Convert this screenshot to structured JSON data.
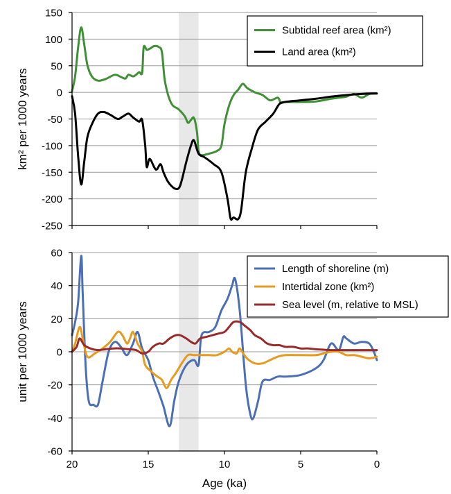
{
  "x_axis": {
    "label": "Age (ka)",
    "ticks": [
      20,
      15,
      10,
      5,
      0
    ],
    "range": [
      20,
      0
    ],
    "shaded_band": [
      13,
      11.7
    ]
  },
  "chart_data": [
    {
      "type": "line",
      "title": "",
      "xlabel": "",
      "ylabel": "km² per 1000 years",
      "ylim": [
        -250,
        150
      ],
      "yticks": [
        150,
        100,
        50,
        0,
        -50,
        -100,
        -150,
        -200,
        -250
      ],
      "grid": true,
      "legend_position": "top-right",
      "series": [
        {
          "name": "Subtidal reef area (km²)",
          "color": "#3f8f35",
          "points": [
            [
              20,
              2
            ],
            [
              19.8,
              30
            ],
            [
              19.6,
              85
            ],
            [
              19.4,
              122
            ],
            [
              19.2,
              90
            ],
            [
              19.0,
              52
            ],
            [
              18.7,
              30
            ],
            [
              18.3,
              22
            ],
            [
              17.8,
              25
            ],
            [
              17.2,
              33
            ],
            [
              16.8,
              29
            ],
            [
              16.5,
              26
            ],
            [
              16.3,
              33
            ],
            [
              16.0,
              30
            ],
            [
              15.8,
              33
            ],
            [
              15.6,
              38
            ],
            [
              15.4,
              37
            ],
            [
              15.3,
              85
            ],
            [
              15.1,
              80
            ],
            [
              14.9,
              82
            ],
            [
              14.6,
              87
            ],
            [
              14.3,
              85
            ],
            [
              14.1,
              75
            ],
            [
              13.9,
              20
            ],
            [
              13.5,
              -20
            ],
            [
              13.0,
              -32
            ],
            [
              12.6,
              -45
            ],
            [
              12.4,
              -57
            ],
            [
              12.2,
              -52
            ],
            [
              12.0,
              -48
            ],
            [
              11.8,
              -75
            ],
            [
              11.7,
              -110
            ],
            [
              11.5,
              -118
            ],
            [
              11.0,
              -115
            ],
            [
              10.5,
              -110
            ],
            [
              10.2,
              -100
            ],
            [
              10.0,
              -60
            ],
            [
              9.7,
              -25
            ],
            [
              9.4,
              -5
            ],
            [
              9.1,
              5
            ],
            [
              8.8,
              16
            ],
            [
              8.5,
              8
            ],
            [
              8.0,
              0
            ],
            [
              7.5,
              -5
            ],
            [
              7.0,
              -15
            ],
            [
              6.5,
              -10
            ],
            [
              6.3,
              -20
            ],
            [
              6.0,
              -18
            ],
            [
              5.0,
              -18
            ],
            [
              4.0,
              -17
            ],
            [
              3.0,
              -12
            ],
            [
              2.5,
              -10
            ],
            [
              2.0,
              -8
            ],
            [
              1.5,
              -3
            ],
            [
              1.0,
              -10
            ],
            [
              0.5,
              -3
            ],
            [
              0,
              -2
            ]
          ]
        },
        {
          "name": "Land area (km²)",
          "color": "#000000",
          "points": [
            [
              20,
              -7
            ],
            [
              19.8,
              -40
            ],
            [
              19.6,
              -120
            ],
            [
              19.4,
              -173
            ],
            [
              19.2,
              -130
            ],
            [
              19.0,
              -85
            ],
            [
              18.7,
              -60
            ],
            [
              18.3,
              -40
            ],
            [
              17.9,
              -37
            ],
            [
              17.5,
              -42
            ],
            [
              17.0,
              -50
            ],
            [
              16.7,
              -46
            ],
            [
              16.3,
              -40
            ],
            [
              16.0,
              -47
            ],
            [
              15.6,
              -55
            ],
            [
              15.4,
              -52
            ],
            [
              15.2,
              -100
            ],
            [
              15.1,
              -140
            ],
            [
              14.9,
              -125
            ],
            [
              14.5,
              -145
            ],
            [
              14.2,
              -135
            ],
            [
              14.0,
              -150
            ],
            [
              13.7,
              -168
            ],
            [
              13.3,
              -180
            ],
            [
              13.0,
              -180
            ],
            [
              12.8,
              -165
            ],
            [
              12.5,
              -130
            ],
            [
              12.2,
              -100
            ],
            [
              12.0,
              -90
            ],
            [
              11.7,
              -115
            ],
            [
              11.3,
              -122
            ],
            [
              10.7,
              -135
            ],
            [
              10.2,
              -150
            ],
            [
              9.8,
              -200
            ],
            [
              9.6,
              -237
            ],
            [
              9.4,
              -235
            ],
            [
              9.1,
              -238
            ],
            [
              8.9,
              -220
            ],
            [
              8.6,
              -150
            ],
            [
              8.2,
              -105
            ],
            [
              7.8,
              -70
            ],
            [
              7.3,
              -55
            ],
            [
              6.8,
              -40
            ],
            [
              6.4,
              -22
            ],
            [
              6.0,
              -18
            ],
            [
              5.0,
              -15
            ],
            [
              4.0,
              -12
            ],
            [
              3.0,
              -8
            ],
            [
              2.0,
              -5
            ],
            [
              1.0,
              -3
            ],
            [
              0,
              -2
            ]
          ]
        }
      ]
    },
    {
      "type": "line",
      "title": "",
      "xlabel": "Age (ka)",
      "ylabel": "unit per 1000 years",
      "ylim": [
        -60,
        60
      ],
      "yticks": [
        60,
        40,
        20,
        0,
        -20,
        -40,
        -60
      ],
      "grid": true,
      "legend_position": "top-right",
      "series": [
        {
          "name": "Length of shoreline (m)",
          "color": "#4a6fb5",
          "points": [
            [
              20,
              10
            ],
            [
              19.8,
              18
            ],
            [
              19.6,
              30
            ],
            [
              19.4,
              58
            ],
            [
              19.3,
              35
            ],
            [
              19.1,
              -10
            ],
            [
              18.9,
              -30
            ],
            [
              18.6,
              -32
            ],
            [
              18.3,
              -32
            ],
            [
              18.0,
              -18
            ],
            [
              17.6,
              0
            ],
            [
              17.2,
              6
            ],
            [
              16.8,
              3
            ],
            [
              16.4,
              -2
            ],
            [
              16.0,
              5
            ],
            [
              15.7,
              12
            ],
            [
              15.4,
              2
            ],
            [
              15.0,
              -5
            ],
            [
              14.7,
              -15
            ],
            [
              14.3,
              -25
            ],
            [
              14.0,
              -33
            ],
            [
              13.6,
              -45
            ],
            [
              13.3,
              -30
            ],
            [
              13.0,
              -18
            ],
            [
              12.5,
              -8
            ],
            [
              12.0,
              -5
            ],
            [
              11.7,
              -8
            ],
            [
              11.5,
              10
            ],
            [
              11.0,
              12
            ],
            [
              10.6,
              15
            ],
            [
              10.2,
              25
            ],
            [
              9.8,
              32
            ],
            [
              9.5,
              40
            ],
            [
              9.3,
              44
            ],
            [
              9.0,
              25
            ],
            [
              8.6,
              -20
            ],
            [
              8.3,
              -38
            ],
            [
              8.1,
              -40
            ],
            [
              7.8,
              -30
            ],
            [
              7.5,
              -18
            ],
            [
              7.0,
              -17
            ],
            [
              6.5,
              -15
            ],
            [
              6.0,
              -15
            ],
            [
              5.0,
              -14
            ],
            [
              4.0,
              -10
            ],
            [
              3.5,
              -5
            ],
            [
              3.0,
              5
            ],
            [
              2.5,
              1
            ],
            [
              2.2,
              9
            ],
            [
              2.0,
              8
            ],
            [
              1.5,
              5
            ],
            [
              1.0,
              6
            ],
            [
              0.5,
              5
            ],
            [
              0.2,
              0
            ],
            [
              0,
              -5
            ]
          ]
        },
        {
          "name": "Intertidal zone (km²)",
          "color": "#e69b1f",
          "points": [
            [
              20,
              0
            ],
            [
              19.8,
              5
            ],
            [
              19.5,
              15
            ],
            [
              19.3,
              8
            ],
            [
              19.0,
              -3
            ],
            [
              18.5,
              -1
            ],
            [
              18.0,
              2
            ],
            [
              17.5,
              6
            ],
            [
              17.0,
              12
            ],
            [
              16.7,
              10
            ],
            [
              16.4,
              5
            ],
            [
              16.2,
              8
            ],
            [
              16.0,
              12
            ],
            [
              15.7,
              5
            ],
            [
              15.4,
              0
            ],
            [
              15.2,
              -8
            ],
            [
              14.8,
              -12
            ],
            [
              14.4,
              -15
            ],
            [
              14.1,
              -17
            ],
            [
              13.8,
              -22
            ],
            [
              13.5,
              -17
            ],
            [
              13.2,
              -13
            ],
            [
              12.8,
              -7
            ],
            [
              12.4,
              -2
            ],
            [
              12.0,
              -2
            ],
            [
              11.5,
              -2
            ],
            [
              11.0,
              -2
            ],
            [
              10.5,
              -2
            ],
            [
              10.0,
              0
            ],
            [
              9.7,
              2
            ],
            [
              9.5,
              0
            ],
            [
              9.2,
              -1
            ],
            [
              9.0,
              2
            ],
            [
              8.7,
              -2
            ],
            [
              8.4,
              -5
            ],
            [
              8.0,
              -7
            ],
            [
              7.5,
              -7
            ],
            [
              7.0,
              -5
            ],
            [
              6.5,
              -3
            ],
            [
              6.0,
              -2
            ],
            [
              5.0,
              -2
            ],
            [
              4.0,
              -2
            ],
            [
              3.5,
              -1
            ],
            [
              3.0,
              0
            ],
            [
              2.5,
              0
            ],
            [
              2.0,
              -2
            ],
            [
              1.5,
              -2
            ],
            [
              1.0,
              -3
            ],
            [
              0.5,
              -4
            ],
            [
              0,
              -3
            ]
          ]
        },
        {
          "name": "Sea level (m, relative to MSL)",
          "color": "#9a2a2a",
          "points": [
            [
              20,
              0
            ],
            [
              19.7,
              3
            ],
            [
              19.5,
              8
            ],
            [
              19.2,
              4
            ],
            [
              18.8,
              2
            ],
            [
              18.3,
              1
            ],
            [
              17.8,
              1.5
            ],
            [
              17.3,
              2
            ],
            [
              16.8,
              2
            ],
            [
              16.3,
              1.5
            ],
            [
              15.8,
              1
            ],
            [
              15.4,
              -1
            ],
            [
              15.0,
              0
            ],
            [
              14.7,
              3
            ],
            [
              14.3,
              5
            ],
            [
              14.0,
              5
            ],
            [
              13.6,
              8
            ],
            [
              13.2,
              10
            ],
            [
              12.9,
              10
            ],
            [
              12.5,
              8
            ],
            [
              12.2,
              6
            ],
            [
              11.9,
              5
            ],
            [
              11.6,
              8
            ],
            [
              11.2,
              9
            ],
            [
              10.8,
              10
            ],
            [
              10.4,
              11
            ],
            [
              10.0,
              12
            ],
            [
              9.7,
              15
            ],
            [
              9.4,
              18
            ],
            [
              9.0,
              18
            ],
            [
              8.7,
              16
            ],
            [
              8.3,
              13
            ],
            [
              8.0,
              10
            ],
            [
              7.6,
              8
            ],
            [
              7.2,
              5
            ],
            [
              6.8,
              4
            ],
            [
              6.4,
              4
            ],
            [
              6.0,
              3
            ],
            [
              5.5,
              3
            ],
            [
              5.0,
              2
            ],
            [
              4.5,
              2
            ],
            [
              4.0,
              1.5
            ],
            [
              3.0,
              1
            ],
            [
              2.0,
              1
            ],
            [
              1.0,
              1
            ],
            [
              0,
              1
            ]
          ]
        }
      ]
    }
  ]
}
